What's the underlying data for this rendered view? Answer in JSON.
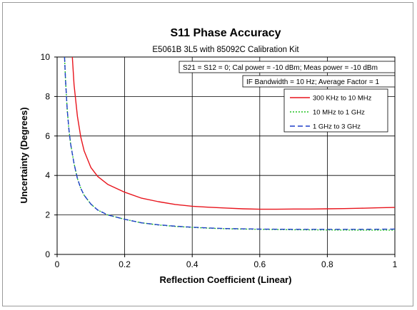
{
  "chart_data": {
    "type": "line",
    "title": "S11 Phase Accuracy",
    "subtitle": "E5061B 3L5 with 85092C Calibration Kit",
    "xlabel": "Reflection Coefficient (Linear)",
    "ylabel": "Uncertainty (Degrees)",
    "xlim": [
      0,
      1
    ],
    "ylim": [
      0,
      10
    ],
    "x_ticks": [
      0,
      0.2,
      0.4,
      0.6,
      0.8,
      1
    ],
    "x_tick_labels": [
      "0",
      "0.2",
      "0.4",
      "0.6",
      "0.8",
      "1"
    ],
    "y_ticks": [
      0,
      2,
      4,
      6,
      8,
      10
    ],
    "y_tick_labels": [
      "0",
      "2",
      "4",
      "6",
      "8",
      "10"
    ],
    "grid": true,
    "annotations": [
      "S21 = S12 = 0; Cal power = -10 dBm; Meas power = -10 dBm",
      "IF Bandwidth  = 10 Hz; Average Factor = 1"
    ],
    "legend_position": "top-right",
    "series": [
      {
        "name": "300 KHz to 10 MHz",
        "color": "#e8141c",
        "dash": "solid",
        "x": [
          0.045,
          0.05,
          0.06,
          0.07,
          0.08,
          0.1,
          0.12,
          0.15,
          0.2,
          0.25,
          0.3,
          0.35,
          0.4,
          0.45,
          0.5,
          0.55,
          0.6,
          0.65,
          0.7,
          0.75,
          0.8,
          0.85,
          0.9,
          0.95,
          1.0
        ],
        "y": [
          10.0,
          8.6,
          7.0,
          5.95,
          5.25,
          4.4,
          3.95,
          3.55,
          3.15,
          2.85,
          2.67,
          2.53,
          2.44,
          2.39,
          2.35,
          2.31,
          2.29,
          2.29,
          2.3,
          2.3,
          2.31,
          2.32,
          2.34,
          2.36,
          2.38
        ]
      },
      {
        "name": "10 MHz to 1 GHz",
        "color": "#22c222",
        "dash": "dotted",
        "x": [
          0.022,
          0.025,
          0.03,
          0.035,
          0.04,
          0.05,
          0.06,
          0.07,
          0.08,
          0.1,
          0.12,
          0.15,
          0.2,
          0.25,
          0.3,
          0.35,
          0.4,
          0.45,
          0.5,
          0.6,
          0.7,
          0.8,
          0.9,
          1.0
        ],
        "y": [
          10.0,
          8.8,
          7.3,
          6.3,
          5.6,
          4.6,
          3.85,
          3.35,
          3.0,
          2.55,
          2.25,
          2.0,
          1.78,
          1.6,
          1.49,
          1.42,
          1.37,
          1.33,
          1.3,
          1.27,
          1.25,
          1.24,
          1.23,
          1.23
        ]
      },
      {
        "name": "1 GHz to 3 GHz",
        "color": "#1f3fc8",
        "dash": "dashed",
        "x": [
          0.022,
          0.025,
          0.03,
          0.035,
          0.04,
          0.05,
          0.06,
          0.07,
          0.08,
          0.1,
          0.12,
          0.15,
          0.2,
          0.25,
          0.3,
          0.35,
          0.4,
          0.45,
          0.5,
          0.6,
          0.7,
          0.8,
          0.9,
          1.0
        ],
        "y": [
          10.0,
          8.8,
          7.3,
          6.3,
          5.6,
          4.6,
          3.85,
          3.35,
          3.0,
          2.55,
          2.25,
          2.0,
          1.78,
          1.6,
          1.5,
          1.43,
          1.38,
          1.34,
          1.31,
          1.28,
          1.27,
          1.27,
          1.27,
          1.28
        ]
      }
    ]
  }
}
